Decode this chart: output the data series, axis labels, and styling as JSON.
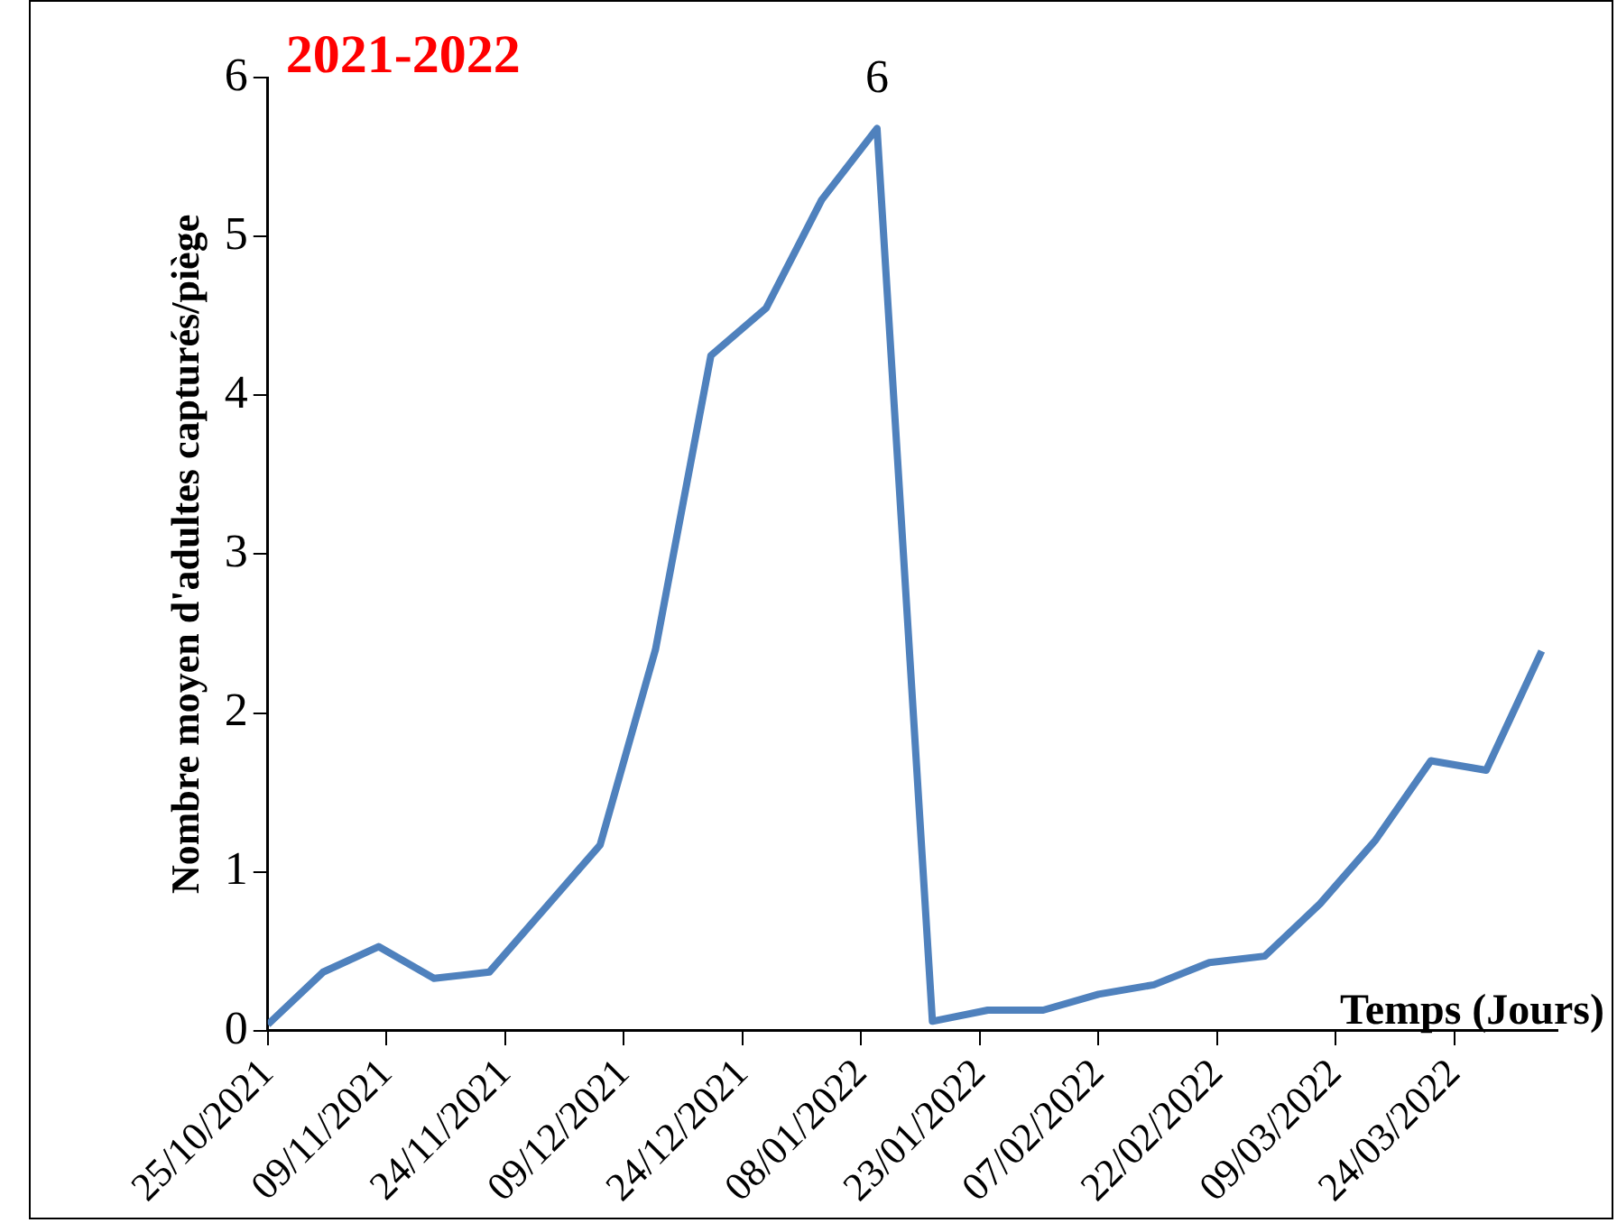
{
  "chart_data": {
    "type": "line",
    "title": "2021-2022",
    "xlabel": "Temps (Jours)",
    "ylabel": "Nombre moyen d'adultes capturés/piège",
    "x": [
      "2021-10-25",
      "2021-11-01",
      "2021-11-08",
      "2021-11-15",
      "2021-11-22",
      "2021-11-29",
      "2021-12-06",
      "2021-12-13",
      "2021-12-20",
      "2021-12-27",
      "2022-01-03",
      "2022-01-10",
      "2022-01-17",
      "2022-01-24",
      "2022-01-31",
      "2022-02-07",
      "2022-02-14",
      "2022-02-21",
      "2022-02-28",
      "2022-03-07",
      "2022-03-14",
      "2022-03-21",
      "2022-03-28",
      "2022-04-04"
    ],
    "series": [
      {
        "color": "#4f81bd",
        "values": [
          0.04,
          0.37,
          0.53,
          0.33,
          0.37,
          0.77,
          1.17,
          2.4,
          4.25,
          4.55,
          5.23,
          5.68,
          0.06,
          0.13,
          0.13,
          0.23,
          0.29,
          0.43,
          0.47,
          0.8,
          1.2,
          1.7,
          1.64,
          2.39
        ]
      }
    ],
    "xlim": [
      "2021-10-25",
      "2022-04-06"
    ],
    "xticks": [
      {
        "value": "2021-10-25",
        "label": "25/10/2021"
      },
      {
        "value": "2021-11-09",
        "label": "09/11/2021"
      },
      {
        "value": "2021-11-24",
        "label": "24/11/2021"
      },
      {
        "value": "2021-12-09",
        "label": "09/12/2021"
      },
      {
        "value": "2021-12-24",
        "label": "24/12/2021"
      },
      {
        "value": "2022-01-08",
        "label": "08/01/2022"
      },
      {
        "value": "2022-01-23",
        "label": "23/01/2022"
      },
      {
        "value": "2022-02-07",
        "label": "07/02/2022"
      },
      {
        "value": "2022-02-22",
        "label": "22/02/2022"
      },
      {
        "value": "2022-03-09",
        "label": "09/03/2022"
      },
      {
        "value": "2022-03-24",
        "label": "24/03/2022"
      }
    ],
    "ylim": [
      0,
      6
    ],
    "yticks": [
      0,
      1,
      2,
      3,
      4,
      5,
      6
    ],
    "grid": false,
    "annotations": [
      {
        "text": "6",
        "x": "2022-01-10",
        "y": 5.68
      }
    ]
  }
}
